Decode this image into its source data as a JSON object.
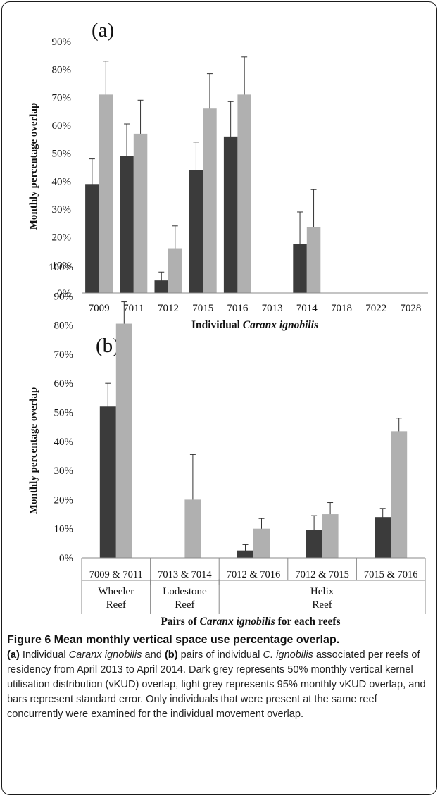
{
  "chart_data": [
    {
      "type": "bar",
      "panel_label": "(a)",
      "categories": [
        "7009",
        "7011",
        "7012",
        "7015",
        "7016",
        "7013",
        "7014",
        "7018",
        "7022",
        "7028"
      ],
      "series": [
        {
          "color": "#3b3b3b",
          "values": [
            39,
            49,
            4.5,
            44,
            56,
            0,
            17.5,
            0,
            0,
            0
          ],
          "error": [
            9,
            11.5,
            3,
            10,
            12.5,
            0,
            11.5,
            0,
            0,
            0
          ]
        },
        {
          "color": "#b0b0b0",
          "values": [
            71,
            57,
            16,
            66,
            71,
            0,
            23.5,
            0,
            0,
            0
          ],
          "error": [
            12,
            12,
            8,
            12.5,
            13.5,
            0,
            13.5,
            0,
            0,
            0
          ]
        }
      ],
      "ylim": [
        0,
        90
      ],
      "yticks": [
        "0%",
        "10%",
        "20%",
        "30%",
        "40%",
        "50%",
        "60%",
        "70%",
        "80%",
        "90%"
      ],
      "ylabel": "Monthly percentage overlap",
      "xlabel_parts": [
        "Individual ",
        "Caranx ignobilis"
      ]
    },
    {
      "type": "bar",
      "panel_label": "(b)",
      "categories": [
        "7009 & 7011",
        "7013 & 7014",
        "7012 & 7016",
        "7012 & 7015",
        "7015 & 7016"
      ],
      "groups": [
        {
          "lines": [
            "Wheeler",
            "Reef"
          ]
        },
        {
          "lines": [
            "Lodestone",
            "Reef"
          ]
        },
        {
          "lines": [
            "Helix",
            "Reef"
          ]
        }
      ],
      "series": [
        {
          "color": "#3b3b3b",
          "values": [
            52,
            0,
            2.5,
            9.5,
            14
          ],
          "error": [
            8,
            0,
            2,
            5,
            3
          ]
        },
        {
          "color": "#b0b0b0",
          "values": [
            80.5,
            20,
            10,
            15,
            43.5
          ],
          "error": [
            7.5,
            15.5,
            3.5,
            4,
            4.5
          ]
        }
      ],
      "ylim": [
        0,
        100
      ],
      "yticks": [
        "0%",
        "10%",
        "20%",
        "30%",
        "40%",
        "50%",
        "60%",
        "70%",
        "80%",
        "90%",
        "100%"
      ],
      "ylabel": "Monthly percentage overlap",
      "xlabel_parts": [
        "Pairs of ",
        "Caranx ignobilis",
        " for each reefs"
      ]
    }
  ],
  "caption": {
    "title": "Figure 6 Mean monthly vertical space use percentage overlap.",
    "p1": "(a)",
    "t1": " Individual ",
    "i1": "Caranx ignobilis",
    "t2": " and ",
    "p2": "(b)",
    "t3": " pairs of individual ",
    "i2": "C. ignobilis",
    "t4": " associated per reefs of residency from April 2013 to April 2014. Dark grey represents 50% monthly vertical kernel utilisation distribution (vKUD) overlap, light grey represents 95% monthly vKUD overlap, and bars represent standard error. Only individuals that were present at the same reef concurrently were examined for the individual movement overlap."
  }
}
